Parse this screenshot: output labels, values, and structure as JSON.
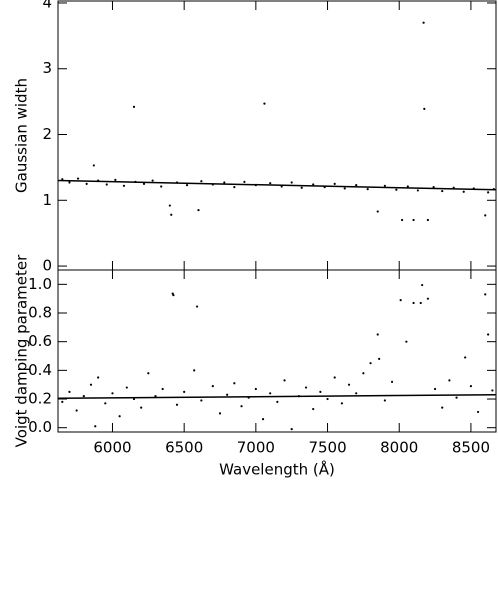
{
  "chart_data": [
    {
      "type": "scatter",
      "y_label": "Gaussian width",
      "xlim": [
        5620,
        8675
      ],
      "ylim": [
        -0.06,
        4.03
      ],
      "xticks": [
        6000,
        6500,
        7000,
        7500,
        8000,
        8500
      ],
      "yticks": [
        0,
        1,
        2,
        3,
        4
      ],
      "series": [
        {
          "mode": "markers",
          "color": "#000000",
          "x": [
            5650,
            5700,
            5760,
            5820,
            5870,
            5900,
            5960,
            6020,
            6080,
            6150,
            6160,
            6220,
            6280,
            6340,
            6400,
            6410,
            6450,
            6520,
            6600,
            6620,
            6700,
            6780,
            6850,
            6920,
            7000,
            7060,
            7100,
            7180,
            7250,
            7320,
            7400,
            7480,
            7550,
            7620,
            7700,
            7780,
            7850,
            7900,
            7980,
            8020,
            8060,
            8100,
            8130,
            8170,
            8175,
            8200,
            8240,
            8300,
            8380,
            8450,
            8520,
            8600,
            8620,
            8660
          ],
          "values": [
            1.32,
            1.27,
            1.33,
            1.25,
            1.53,
            1.3,
            1.24,
            1.31,
            1.22,
            2.42,
            1.28,
            1.25,
            1.3,
            1.21,
            0.92,
            0.78,
            1.27,
            1.23,
            0.85,
            1.29,
            1.24,
            1.27,
            1.2,
            1.28,
            1.23,
            2.47,
            1.26,
            1.21,
            1.27,
            1.19,
            1.24,
            1.2,
            1.25,
            1.18,
            1.23,
            1.17,
            0.83,
            1.22,
            1.16,
            0.7,
            1.21,
            0.7,
            1.15,
            3.7,
            2.39,
            0.7,
            1.2,
            1.14,
            1.19,
            1.13,
            1.18,
            0.77,
            1.12,
            1.17
          ]
        },
        {
          "mode": "line",
          "color": "#000000",
          "x": [
            5620,
            8675
          ],
          "values": [
            1.3,
            1.16
          ]
        }
      ]
    },
    {
      "type": "scatter",
      "y_label": "Voigt damping parameter",
      "x_label": "Wavelength (Å)",
      "xlim": [
        5620,
        8675
      ],
      "ylim": [
        -0.03,
        1.1
      ],
      "xticks": [
        6000,
        6500,
        7000,
        7500,
        8000,
        8500
      ],
      "yticks": [
        {
          "value": 0,
          "label": "0.0"
        },
        {
          "value": 0.2,
          "label": "0.2"
        },
        {
          "value": 0.4,
          "label": "0.4"
        },
        {
          "value": 0.6,
          "label": "0.6"
        },
        {
          "value": 0.8,
          "label": "0.8"
        },
        {
          "value": 1,
          "label": "1.0"
        }
      ],
      "series": [
        {
          "mode": "markers",
          "color": "#000000",
          "x": [
            5650,
            5700,
            5750,
            5800,
            5850,
            5880,
            5900,
            5950,
            6000,
            6050,
            6100,
            6150,
            6200,
            6250,
            6300,
            6350,
            6420,
            6425,
            6450,
            6500,
            6570,
            6590,
            6620,
            6700,
            6750,
            6800,
            6850,
            6900,
            6950,
            7000,
            7050,
            7100,
            7150,
            7200,
            7250,
            7300,
            7350,
            7400,
            7450,
            7500,
            7550,
            7600,
            7650,
            7700,
            7750,
            7800,
            7850,
            7860,
            7900,
            7950,
            8010,
            8050,
            8100,
            8150,
            8160,
            8200,
            8250,
            8300,
            8350,
            8400,
            8460,
            8500,
            8550,
            8600,
            8620,
            8650
          ],
          "values": [
            0.18,
            0.25,
            0.12,
            0.22,
            0.3,
            0.01,
            0.35,
            0.17,
            0.24,
            0.08,
            0.28,
            0.2,
            0.14,
            0.38,
            0.22,
            0.27,
            0.935,
            0.925,
            0.16,
            0.25,
            0.4,
            0.845,
            0.19,
            0.29,
            0.1,
            0.23,
            0.31,
            0.15,
            0.21,
            0.27,
            0.06,
            0.24,
            0.18,
            0.33,
            -0.01,
            0.22,
            0.28,
            0.13,
            0.25,
            0.2,
            0.35,
            0.17,
            0.3,
            0.24,
            0.38,
            0.45,
            0.65,
            0.48,
            0.19,
            0.32,
            0.89,
            0.6,
            0.87,
            0.87,
            0.995,
            0.9,
            0.27,
            0.14,
            0.33,
            0.21,
            0.49,
            0.29,
            0.11,
            0.93,
            0.65,
            0.26
          ]
        },
        {
          "mode": "line",
          "color": "#000000",
          "x": [
            5620,
            8675
          ],
          "values": [
            0.205,
            0.23
          ]
        }
      ]
    }
  ]
}
